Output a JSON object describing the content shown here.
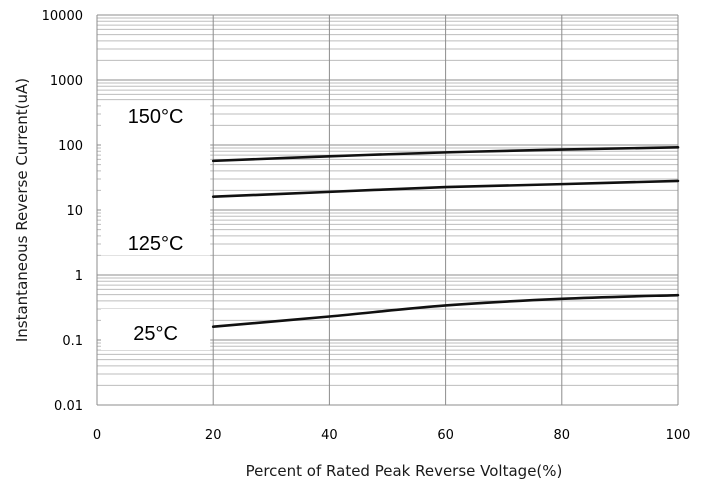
{
  "chart_data": {
    "type": "line",
    "xlabel": "Percent of Rated Peak Reverse Voltage(%)",
    "ylabel": "Instantaneous Reverse Current(uA)",
    "xlim": [
      0,
      100
    ],
    "ylim": [
      0.01,
      10000
    ],
    "yscale": "log",
    "grid": true,
    "x_ticks": [
      "0",
      "20",
      "40",
      "60",
      "80",
      "100"
    ],
    "y_ticks": [
      "0.01",
      "0.1",
      "1",
      "10",
      "100",
      "1000",
      "10000"
    ],
    "series": [
      {
        "name": "150°C",
        "x": [
          20,
          40,
          60,
          80,
          100
        ],
        "y": [
          57,
          67,
          77,
          85,
          92
        ]
      },
      {
        "name": "125°C",
        "x": [
          20,
          40,
          60,
          80,
          100
        ],
        "y": [
          16,
          19,
          22.5,
          25,
          28
        ]
      },
      {
        "name": "25°C",
        "x": [
          20,
          40,
          60,
          80,
          100
        ],
        "y": [
          0.16,
          0.23,
          0.34,
          0.43,
          0.49
        ]
      }
    ]
  }
}
